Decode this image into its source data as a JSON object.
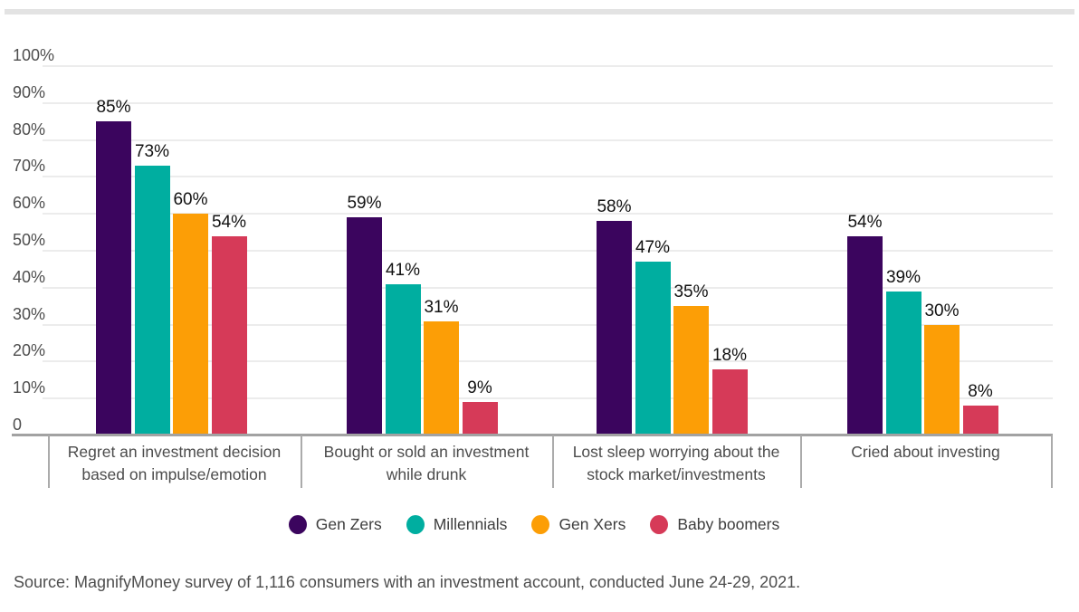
{
  "page": {
    "source_note": "Source: MagnifyMoney survey of 1,116 consumers with an investment account, conducted June 24-29, 2021."
  },
  "chart_data": {
    "type": "bar",
    "title": "",
    "categories": [
      "Regret an investment decision based on impulse/emotion",
      "Bought or sold an investment while drunk",
      "Lost sleep worrying about the stock market/investments",
      "Cried about investing"
    ],
    "series": [
      {
        "name": "Gen Zers",
        "color": "#3b055e",
        "values": [
          85,
          59,
          58,
          54
        ]
      },
      {
        "name": "Millennials",
        "color": "#00aea0",
        "values": [
          73,
          41,
          47,
          39
        ]
      },
      {
        "name": "Gen Xers",
        "color": "#fc9e06",
        "values": [
          60,
          31,
          35,
          30
        ]
      },
      {
        "name": "Baby boomers",
        "color": "#d63a58",
        "values": [
          54,
          9,
          18,
          8
        ]
      }
    ],
    "value_suffix": "%",
    "data_labels": [
      "85%",
      "73%",
      "60%",
      "54%",
      "59%",
      "41%",
      "31%",
      "9%",
      "58%",
      "47%",
      "35%",
      "18%",
      "54%",
      "39%",
      "30%",
      "8%"
    ],
    "y_axis": {
      "min": 0,
      "max": 100,
      "step": 10,
      "ticks": [
        "100%",
        "90%",
        "80%",
        "70%",
        "60%",
        "50%",
        "40%",
        "30%",
        "20%",
        "10%",
        "0"
      ]
    },
    "xlabel": "",
    "ylabel": "",
    "grid": true,
    "legend_position": "bottom"
  },
  "colors": {
    "gen_zers": "#3b055e",
    "millennials": "#00aea0",
    "gen_xers": "#fc9e06",
    "baby_boomers": "#d63a58",
    "gridline": "#ececec",
    "axis_line": "#a2a2a2",
    "text_gray": "#4e4e4e",
    "value_label": "#121212",
    "top_strip": "#e3e3e3"
  }
}
